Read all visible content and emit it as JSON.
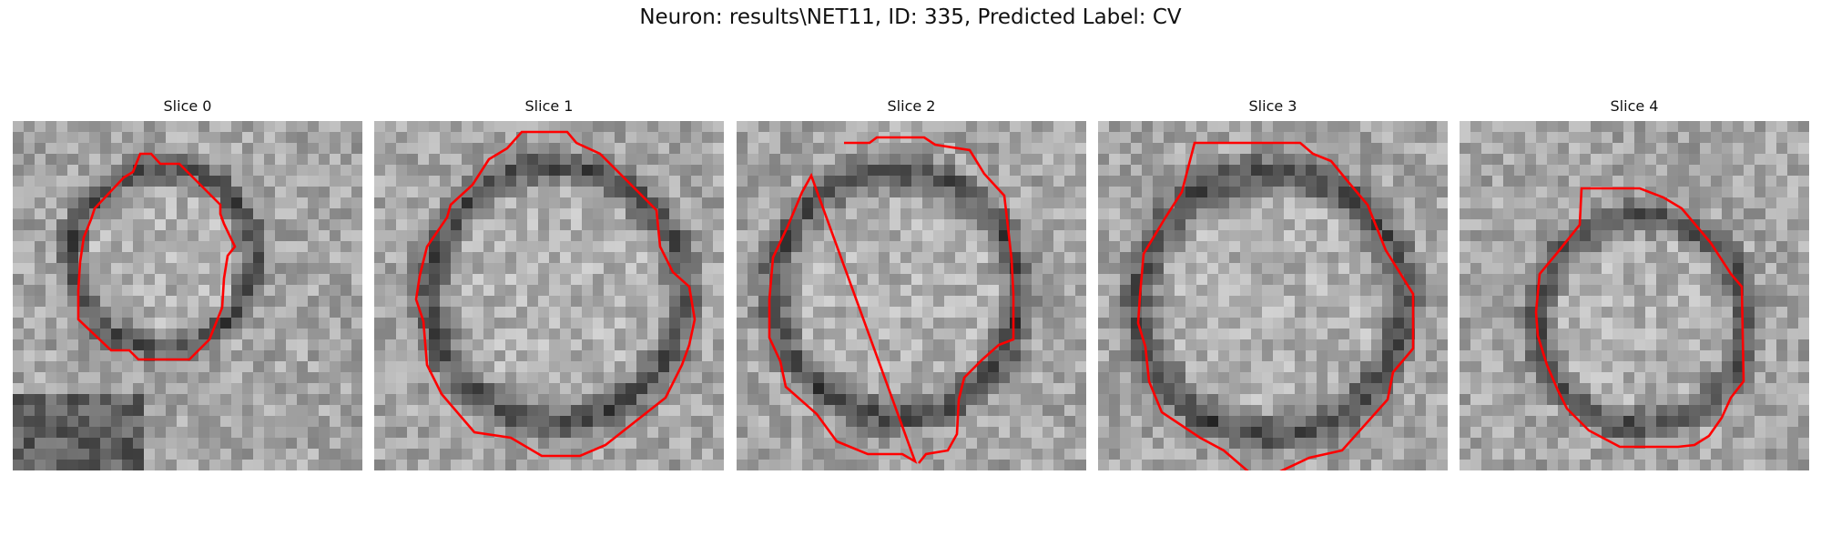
{
  "figure": {
    "title": "Neuron: results\\NET11, ID: 335, Predicted Label: CV"
  },
  "overlay_color": "#ff0000",
  "panels": [
    {
      "title": "Slice 0"
    },
    {
      "title": "Slice 1"
    },
    {
      "title": "Slice 2"
    },
    {
      "title": "Slice 3"
    },
    {
      "title": "Slice 4"
    }
  ]
}
